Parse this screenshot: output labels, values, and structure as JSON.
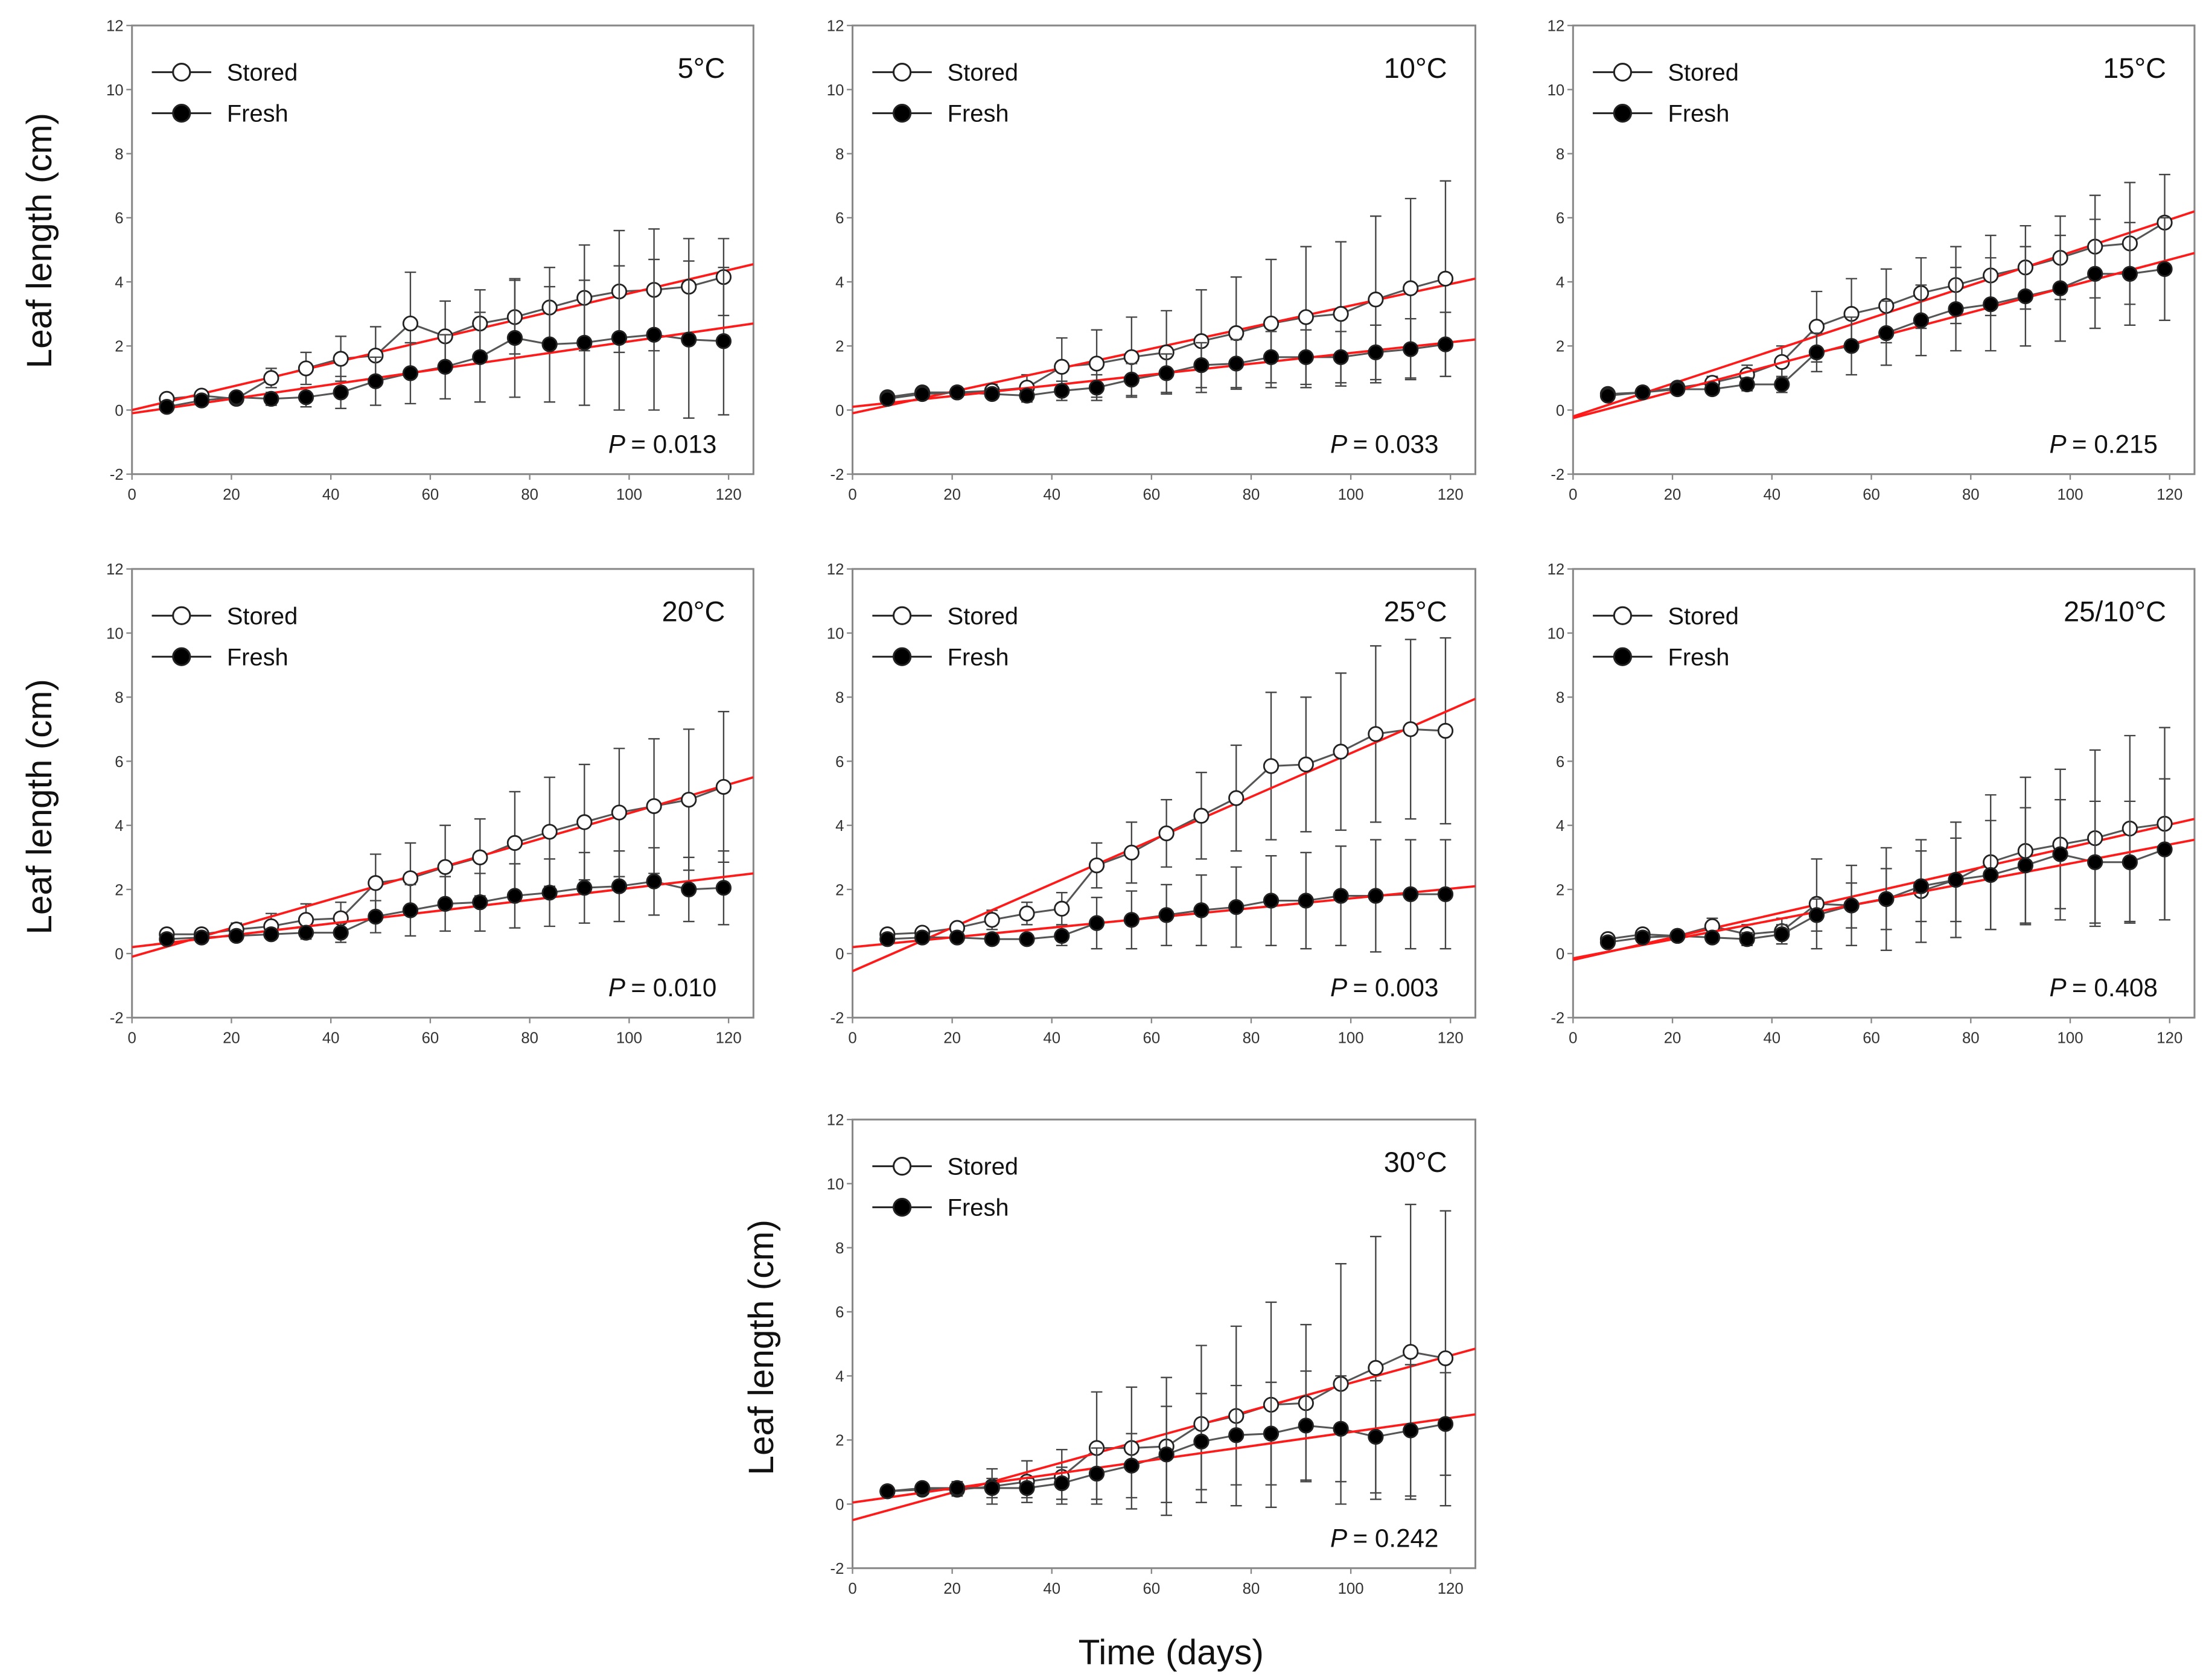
{
  "figure": {
    "y_axis_label": "Leaf length (cm)",
    "x_axis_label": "Time (days)",
    "colors": {
      "fit_line": "#ff1a1a",
      "data_line": "#555555",
      "axis": "#888888"
    }
  },
  "chart_data": [
    {
      "type": "line",
      "title": "5°C",
      "p_value_label": "P",
      "p_value": "= 0.013",
      "legend": [
        "Stored",
        "Fresh"
      ],
      "legend_placement": "top-left",
      "xlim": [
        0,
        125
      ],
      "ylim": [
        -2,
        12
      ],
      "x_ticks": [
        0,
        20,
        40,
        60,
        80,
        100,
        120
      ],
      "y_ticks": [
        -2,
        0,
        2,
        4,
        6,
        8,
        10,
        12
      ],
      "x": [
        7,
        14,
        21,
        28,
        35,
        42,
        49,
        56,
        63,
        70,
        77,
        84,
        91,
        98,
        105,
        112,
        119
      ],
      "series": [
        {
          "name": "Stored",
          "marker": "open-circle",
          "values": [
            0.35,
            0.45,
            0.35,
            1.0,
            1.3,
            1.6,
            1.7,
            2.7,
            2.3,
            2.7,
            2.9,
            3.2,
            3.5,
            3.7,
            3.75,
            3.85,
            4.15
          ],
          "error": [
            0.1,
            0.1,
            0.1,
            0.3,
            0.5,
            0.7,
            0.9,
            1.6,
            1.1,
            1.05,
            1.15,
            1.25,
            1.65,
            1.9,
            1.9,
            1.5,
            1.2
          ],
          "fit": {
            "intercept": 0.0,
            "slope": 0.0364
          }
        },
        {
          "name": "Fresh",
          "marker": "filled-circle",
          "values": [
            0.1,
            0.3,
            0.4,
            0.35,
            0.4,
            0.55,
            0.9,
            1.15,
            1.35,
            1.65,
            2.25,
            2.05,
            2.1,
            2.25,
            2.35,
            2.2,
            2.15
          ],
          "error": [
            0.05,
            0.1,
            0.1,
            0.2,
            0.3,
            0.5,
            0.75,
            0.95,
            1.0,
            1.4,
            1.85,
            1.8,
            1.95,
            2.25,
            2.35,
            2.45,
            2.3
          ],
          "fit": {
            "intercept": -0.1,
            "slope": 0.0224
          }
        }
      ]
    },
    {
      "type": "line",
      "title": "10°C",
      "p_value_label": "P",
      "p_value": "= 0.033",
      "legend": [
        "Stored",
        "Fresh"
      ],
      "legend_placement": "top-left",
      "xlim": [
        0,
        125
      ],
      "ylim": [
        -2,
        12
      ],
      "x_ticks": [
        0,
        20,
        40,
        60,
        80,
        100,
        120
      ],
      "y_ticks": [
        -2,
        0,
        2,
        4,
        6,
        8,
        10,
        12
      ],
      "x": [
        7,
        14,
        21,
        28,
        35,
        42,
        49,
        56,
        63,
        70,
        77,
        84,
        91,
        98,
        105,
        112,
        119
      ],
      "series": [
        {
          "name": "Stored",
          "marker": "open-circle",
          "values": [
            0.4,
            0.55,
            0.55,
            0.6,
            0.7,
            1.35,
            1.45,
            1.65,
            1.8,
            2.15,
            2.4,
            2.7,
            2.9,
            3.0,
            3.45,
            3.8,
            4.1
          ],
          "error": [
            0.1,
            0.1,
            0.1,
            0.2,
            0.4,
            0.9,
            1.05,
            1.25,
            1.3,
            1.6,
            1.75,
            2.0,
            2.2,
            2.25,
            2.6,
            2.8,
            3.05
          ],
          "fit": {
            "intercept": -0.1,
            "slope": 0.0336
          }
        },
        {
          "name": "Fresh",
          "marker": "filled-circle",
          "values": [
            0.35,
            0.5,
            0.55,
            0.5,
            0.45,
            0.6,
            0.7,
            0.95,
            1.15,
            1.4,
            1.45,
            1.65,
            1.65,
            1.65,
            1.8,
            1.9,
            2.05
          ],
          "error": [
            0.1,
            0.1,
            0.1,
            0.15,
            0.2,
            0.3,
            0.4,
            0.5,
            0.6,
            0.7,
            0.75,
            0.8,
            0.85,
            0.8,
            0.85,
            0.95,
            1.0
          ],
          "fit": {
            "intercept": 0.1,
            "slope": 0.0168
          }
        }
      ]
    },
    {
      "type": "line",
      "title": "15°C",
      "p_value_label": "P",
      "p_value": "= 0.215",
      "legend": [
        "Stored",
        "Fresh"
      ],
      "legend_placement": "top-left",
      "xlim": [
        0,
        125
      ],
      "ylim": [
        -2,
        12
      ],
      "x_ticks": [
        0,
        20,
        40,
        60,
        80,
        100,
        120
      ],
      "y_ticks": [
        -2,
        0,
        2,
        4,
        6,
        8,
        10,
        12
      ],
      "x": [
        7,
        14,
        21,
        28,
        35,
        42,
        49,
        56,
        63,
        70,
        77,
        84,
        91,
        98,
        105,
        112,
        119
      ],
      "series": [
        {
          "name": "Stored",
          "marker": "open-circle",
          "values": [
            0.5,
            0.55,
            0.7,
            0.85,
            1.1,
            1.5,
            2.6,
            3.0,
            3.25,
            3.65,
            3.9,
            4.2,
            4.45,
            4.75,
            5.1,
            5.2,
            5.85
          ],
          "error": [
            0.1,
            0.1,
            0.15,
            0.2,
            0.3,
            0.5,
            1.1,
            1.1,
            1.15,
            1.1,
            1.2,
            1.25,
            1.3,
            1.3,
            1.6,
            1.9,
            1.5
          ],
          "fit": {
            "intercept": -0.2,
            "slope": 0.0512
          }
        },
        {
          "name": "Fresh",
          "marker": "filled-circle",
          "values": [
            0.45,
            0.55,
            0.65,
            0.65,
            0.8,
            0.8,
            1.8,
            2.0,
            2.4,
            2.8,
            3.15,
            3.3,
            3.55,
            3.8,
            4.25,
            4.25,
            4.4
          ],
          "error": [
            0.05,
            0.1,
            0.1,
            0.15,
            0.2,
            0.25,
            0.6,
            0.9,
            1.0,
            1.1,
            1.3,
            1.45,
            1.55,
            1.65,
            1.7,
            1.6,
            1.6
          ],
          "fit": {
            "intercept": -0.25,
            "slope": 0.0412
          }
        }
      ]
    },
    {
      "type": "line",
      "title": "20°C",
      "p_value_label": "P",
      "p_value": "= 0.010",
      "legend": [
        "Stored",
        "Fresh"
      ],
      "legend_placement": "top-left",
      "xlim": [
        0,
        125
      ],
      "ylim": [
        -2,
        12
      ],
      "x_ticks": [
        0,
        20,
        40,
        60,
        80,
        100,
        120
      ],
      "y_ticks": [
        -2,
        0,
        2,
        4,
        6,
        8,
        10,
        12
      ],
      "x": [
        7,
        14,
        21,
        28,
        35,
        42,
        49,
        56,
        63,
        70,
        77,
        84,
        91,
        98,
        105,
        112,
        119
      ],
      "series": [
        {
          "name": "Stored",
          "marker": "open-circle",
          "values": [
            0.6,
            0.6,
            0.75,
            0.85,
            1.05,
            1.1,
            2.2,
            2.35,
            2.7,
            3.0,
            3.45,
            3.8,
            4.1,
            4.4,
            4.6,
            4.8,
            5.2
          ],
          "error": [
            0.1,
            0.1,
            0.2,
            0.4,
            0.5,
            0.5,
            0.9,
            1.1,
            1.3,
            1.2,
            1.6,
            1.7,
            1.8,
            2.0,
            2.1,
            2.2,
            2.35
          ],
          "fit": {
            "intercept": -0.1,
            "slope": 0.0448
          }
        },
        {
          "name": "Fresh",
          "marker": "filled-circle",
          "values": [
            0.45,
            0.5,
            0.55,
            0.6,
            0.65,
            0.65,
            1.15,
            1.35,
            1.55,
            1.6,
            1.8,
            1.9,
            2.05,
            2.1,
            2.25,
            2.0,
            2.05
          ],
          "error": [
            0.05,
            0.05,
            0.1,
            0.15,
            0.2,
            0.3,
            0.5,
            0.8,
            0.85,
            0.9,
            1.0,
            1.05,
            1.1,
            1.1,
            1.05,
            1.0,
            1.15
          ],
          "fit": {
            "intercept": 0.2,
            "slope": 0.0184
          }
        }
      ]
    },
    {
      "type": "line",
      "title": "25°C",
      "p_value_label": "P",
      "p_value": "= 0.003",
      "legend": [
        "Stored",
        "Fresh"
      ],
      "legend_placement": "top-left",
      "xlim": [
        0,
        125
      ],
      "ylim": [
        -2,
        12
      ],
      "x_ticks": [
        0,
        20,
        40,
        60,
        80,
        100,
        120
      ],
      "y_ticks": [
        -2,
        0,
        2,
        4,
        6,
        8,
        10,
        12
      ],
      "x": [
        7,
        14,
        21,
        28,
        35,
        42,
        49,
        56,
        63,
        70,
        77,
        84,
        91,
        98,
        105,
        112,
        119
      ],
      "series": [
        {
          "name": "Stored",
          "marker": "open-circle",
          "values": [
            0.6,
            0.65,
            0.8,
            1.05,
            1.25,
            1.4,
            2.75,
            3.15,
            3.75,
            4.3,
            4.85,
            5.85,
            5.9,
            6.3,
            6.85,
            7.0,
            6.95
          ],
          "error": [
            0.1,
            0.1,
            0.1,
            0.3,
            0.35,
            0.5,
            0.7,
            0.95,
            1.05,
            1.35,
            1.65,
            2.3,
            2.1,
            2.45,
            2.75,
            2.8,
            2.9
          ],
          "fit": {
            "intercept": -0.55,
            "slope": 0.068
          }
        },
        {
          "name": "Fresh",
          "marker": "filled-circle",
          "values": [
            0.45,
            0.5,
            0.5,
            0.45,
            0.45,
            0.55,
            0.95,
            1.05,
            1.2,
            1.35,
            1.45,
            1.65,
            1.65,
            1.8,
            1.8,
            1.85,
            1.85
          ],
          "error": [
            0.1,
            0.1,
            0.15,
            0.1,
            0.1,
            0.3,
            0.8,
            0.9,
            0.95,
            1.1,
            1.25,
            1.4,
            1.5,
            1.55,
            1.75,
            1.7,
            1.7
          ],
          "fit": {
            "intercept": 0.2,
            "slope": 0.0152
          }
        }
      ]
    },
    {
      "type": "line",
      "title": "25/10°C",
      "p_value_label": "P",
      "p_value": "= 0.408",
      "legend": [
        "Stored",
        "Fresh"
      ],
      "legend_placement": "top-left",
      "xlim": [
        0,
        125
      ],
      "ylim": [
        -2,
        12
      ],
      "x_ticks": [
        0,
        20,
        40,
        60,
        80,
        100,
        120
      ],
      "y_ticks": [
        -2,
        0,
        2,
        4,
        6,
        8,
        10,
        12
      ],
      "x": [
        7,
        14,
        21,
        28,
        35,
        42,
        49,
        56,
        63,
        70,
        77,
        84,
        91,
        98,
        105,
        112,
        119
      ],
      "series": [
        {
          "name": "Stored",
          "marker": "open-circle",
          "values": [
            0.45,
            0.6,
            0.55,
            0.85,
            0.6,
            0.7,
            1.55,
            1.5,
            1.7,
            1.95,
            2.3,
            2.85,
            3.2,
            3.4,
            3.6,
            3.9,
            4.05
          ],
          "error": [
            0.1,
            0.1,
            0.15,
            0.25,
            0.3,
            0.4,
            1.4,
            1.25,
            1.6,
            1.6,
            1.8,
            2.1,
            2.3,
            2.35,
            2.75,
            2.9,
            3.0
          ],
          "fit": {
            "intercept": -0.2,
            "slope": 0.0352
          }
        },
        {
          "name": "Fresh",
          "marker": "filled-circle",
          "values": [
            0.35,
            0.5,
            0.55,
            0.5,
            0.45,
            0.6,
            1.2,
            1.5,
            1.7,
            2.1,
            2.3,
            2.45,
            2.75,
            3.1,
            2.85,
            2.85,
            3.25
          ],
          "error": [
            0.05,
            0.1,
            0.1,
            0.15,
            0.2,
            0.3,
            0.5,
            0.7,
            0.95,
            1.1,
            1.3,
            1.7,
            1.8,
            1.7,
            1.9,
            1.9,
            2.2
          ],
          "fit": {
            "intercept": -0.15,
            "slope": 0.0296
          }
        }
      ]
    },
    {
      "type": "line",
      "title": "30°C",
      "p_value_label": "P",
      "p_value": "= 0.242",
      "legend": [
        "Stored",
        "Fresh"
      ],
      "legend_placement": "top-left",
      "xlim": [
        0,
        125
      ],
      "ylim": [
        -2,
        12
      ],
      "x_ticks": [
        0,
        20,
        40,
        60,
        80,
        100,
        120
      ],
      "y_ticks": [
        -2,
        0,
        2,
        4,
        6,
        8,
        10,
        12
      ],
      "x": [
        7,
        14,
        21,
        28,
        35,
        42,
        49,
        56,
        63,
        70,
        77,
        84,
        91,
        98,
        105,
        112,
        119
      ],
      "series": [
        {
          "name": "Stored",
          "marker": "open-circle",
          "values": [
            0.4,
            0.45,
            0.45,
            0.55,
            0.7,
            0.85,
            1.75,
            1.75,
            1.8,
            2.5,
            2.75,
            3.1,
            3.15,
            3.75,
            4.25,
            4.75,
            4.55
          ],
          "error": [
            0.1,
            0.15,
            0.2,
            0.55,
            0.65,
            0.85,
            1.75,
            1.9,
            2.15,
            2.45,
            2.8,
            3.2,
            2.45,
            3.75,
            4.1,
            4.6,
            4.6
          ],
          "fit": {
            "intercept": -0.5,
            "slope": 0.0428
          }
        },
        {
          "name": "Fresh",
          "marker": "filled-circle",
          "values": [
            0.4,
            0.5,
            0.5,
            0.5,
            0.5,
            0.65,
            0.95,
            1.2,
            1.55,
            1.95,
            2.15,
            2.2,
            2.45,
            2.35,
            2.1,
            2.3,
            2.5
          ],
          "error": [
            0.05,
            0.1,
            0.2,
            0.3,
            0.3,
            0.5,
            0.8,
            1.0,
            1.5,
            1.5,
            1.55,
            1.6,
            1.7,
            1.65,
            1.75,
            2.05,
            1.6
          ],
          "fit": {
            "intercept": 0.05,
            "slope": 0.022
          }
        }
      ]
    }
  ]
}
